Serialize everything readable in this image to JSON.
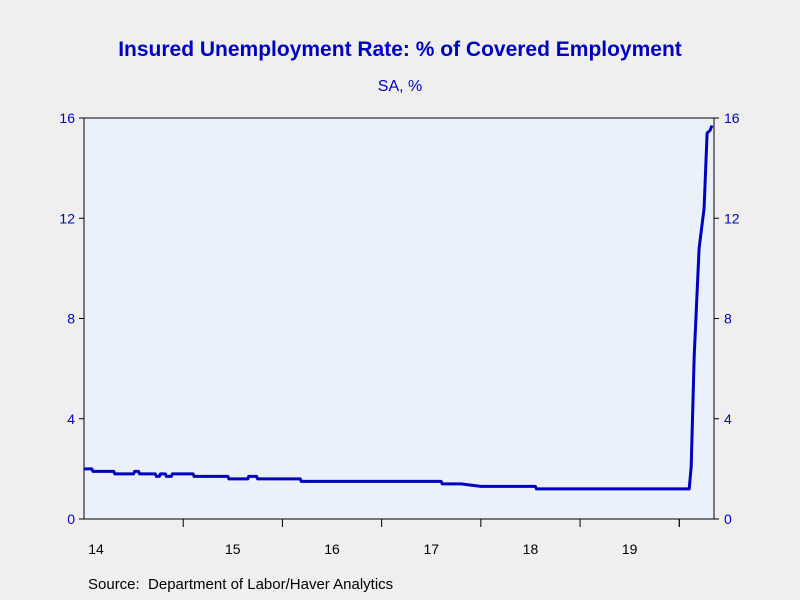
{
  "chart_data": {
    "type": "line",
    "title": "Insured Unemployment Rate: % of Covered Employment",
    "subtitle": "SA, %",
    "source": "Source:  Department of Labor/Haver Analytics",
    "xlabel": "",
    "ylabel": "",
    "ylim": [
      0,
      16
    ],
    "yticks": [
      0,
      4,
      8,
      12,
      16
    ],
    "xlim": [
      2014.0,
      2020.35
    ],
    "xtick_labels": [
      "14",
      "15",
      "16",
      "17",
      "18",
      "19"
    ],
    "y_axis": "both",
    "grid": false,
    "legend": "none",
    "colors": {
      "line": "#0000c0",
      "text": "#0000c0",
      "plot_bg": "#eaf1fb",
      "page_bg": "#efefef"
    },
    "series": [
      {
        "x": [
          2014.0,
          2014.08,
          2014.09,
          2014.3,
          2014.31,
          2014.5,
          2014.51,
          2014.55,
          2014.56,
          2014.72,
          2014.73,
          2014.76,
          2014.77,
          2014.82,
          2014.83,
          2014.88,
          2014.89,
          2015.1,
          2015.11,
          2015.12,
          2015.13,
          2015.2,
          2015.21,
          2015.26,
          2015.27,
          2015.45,
          2015.46,
          2015.48,
          2015.49,
          2015.65,
          2015.66,
          2015.74,
          2015.75,
          2015.78,
          2015.79,
          2016.18,
          2016.19,
          2017.6,
          2017.61,
          2017.63,
          2017.64,
          2017.67,
          2017.68,
          2017.8,
          2018.0,
          2018.55,
          2018.56,
          2019.3,
          2019.4,
          2019.5,
          2019.6,
          2019.7,
          2019.8,
          2019.9,
          2020.0,
          2020.05,
          2020.1,
          2020.12,
          2020.15,
          2020.2,
          2020.25,
          2020.28,
          2020.31,
          2020.33
        ],
        "y": [
          2.0,
          2.0,
          1.9,
          1.9,
          1.8,
          1.8,
          1.9,
          1.9,
          1.8,
          1.8,
          1.7,
          1.7,
          1.8,
          1.8,
          1.7,
          1.7,
          1.8,
          1.8,
          1.7,
          1.7,
          1.7,
          1.7,
          1.7,
          1.7,
          1.7,
          1.7,
          1.6,
          1.6,
          1.6,
          1.6,
          1.7,
          1.7,
          1.6,
          1.6,
          1.6,
          1.6,
          1.5,
          1.5,
          1.4,
          1.4,
          1.4,
          1.4,
          1.4,
          1.4,
          1.3,
          1.3,
          1.2,
          1.2,
          1.2,
          1.2,
          1.2,
          1.2,
          1.2,
          1.2,
          1.2,
          1.2,
          1.2,
          2.1,
          6.5,
          10.8,
          12.4,
          15.4,
          15.5,
          15.7
        ]
      }
    ]
  }
}
